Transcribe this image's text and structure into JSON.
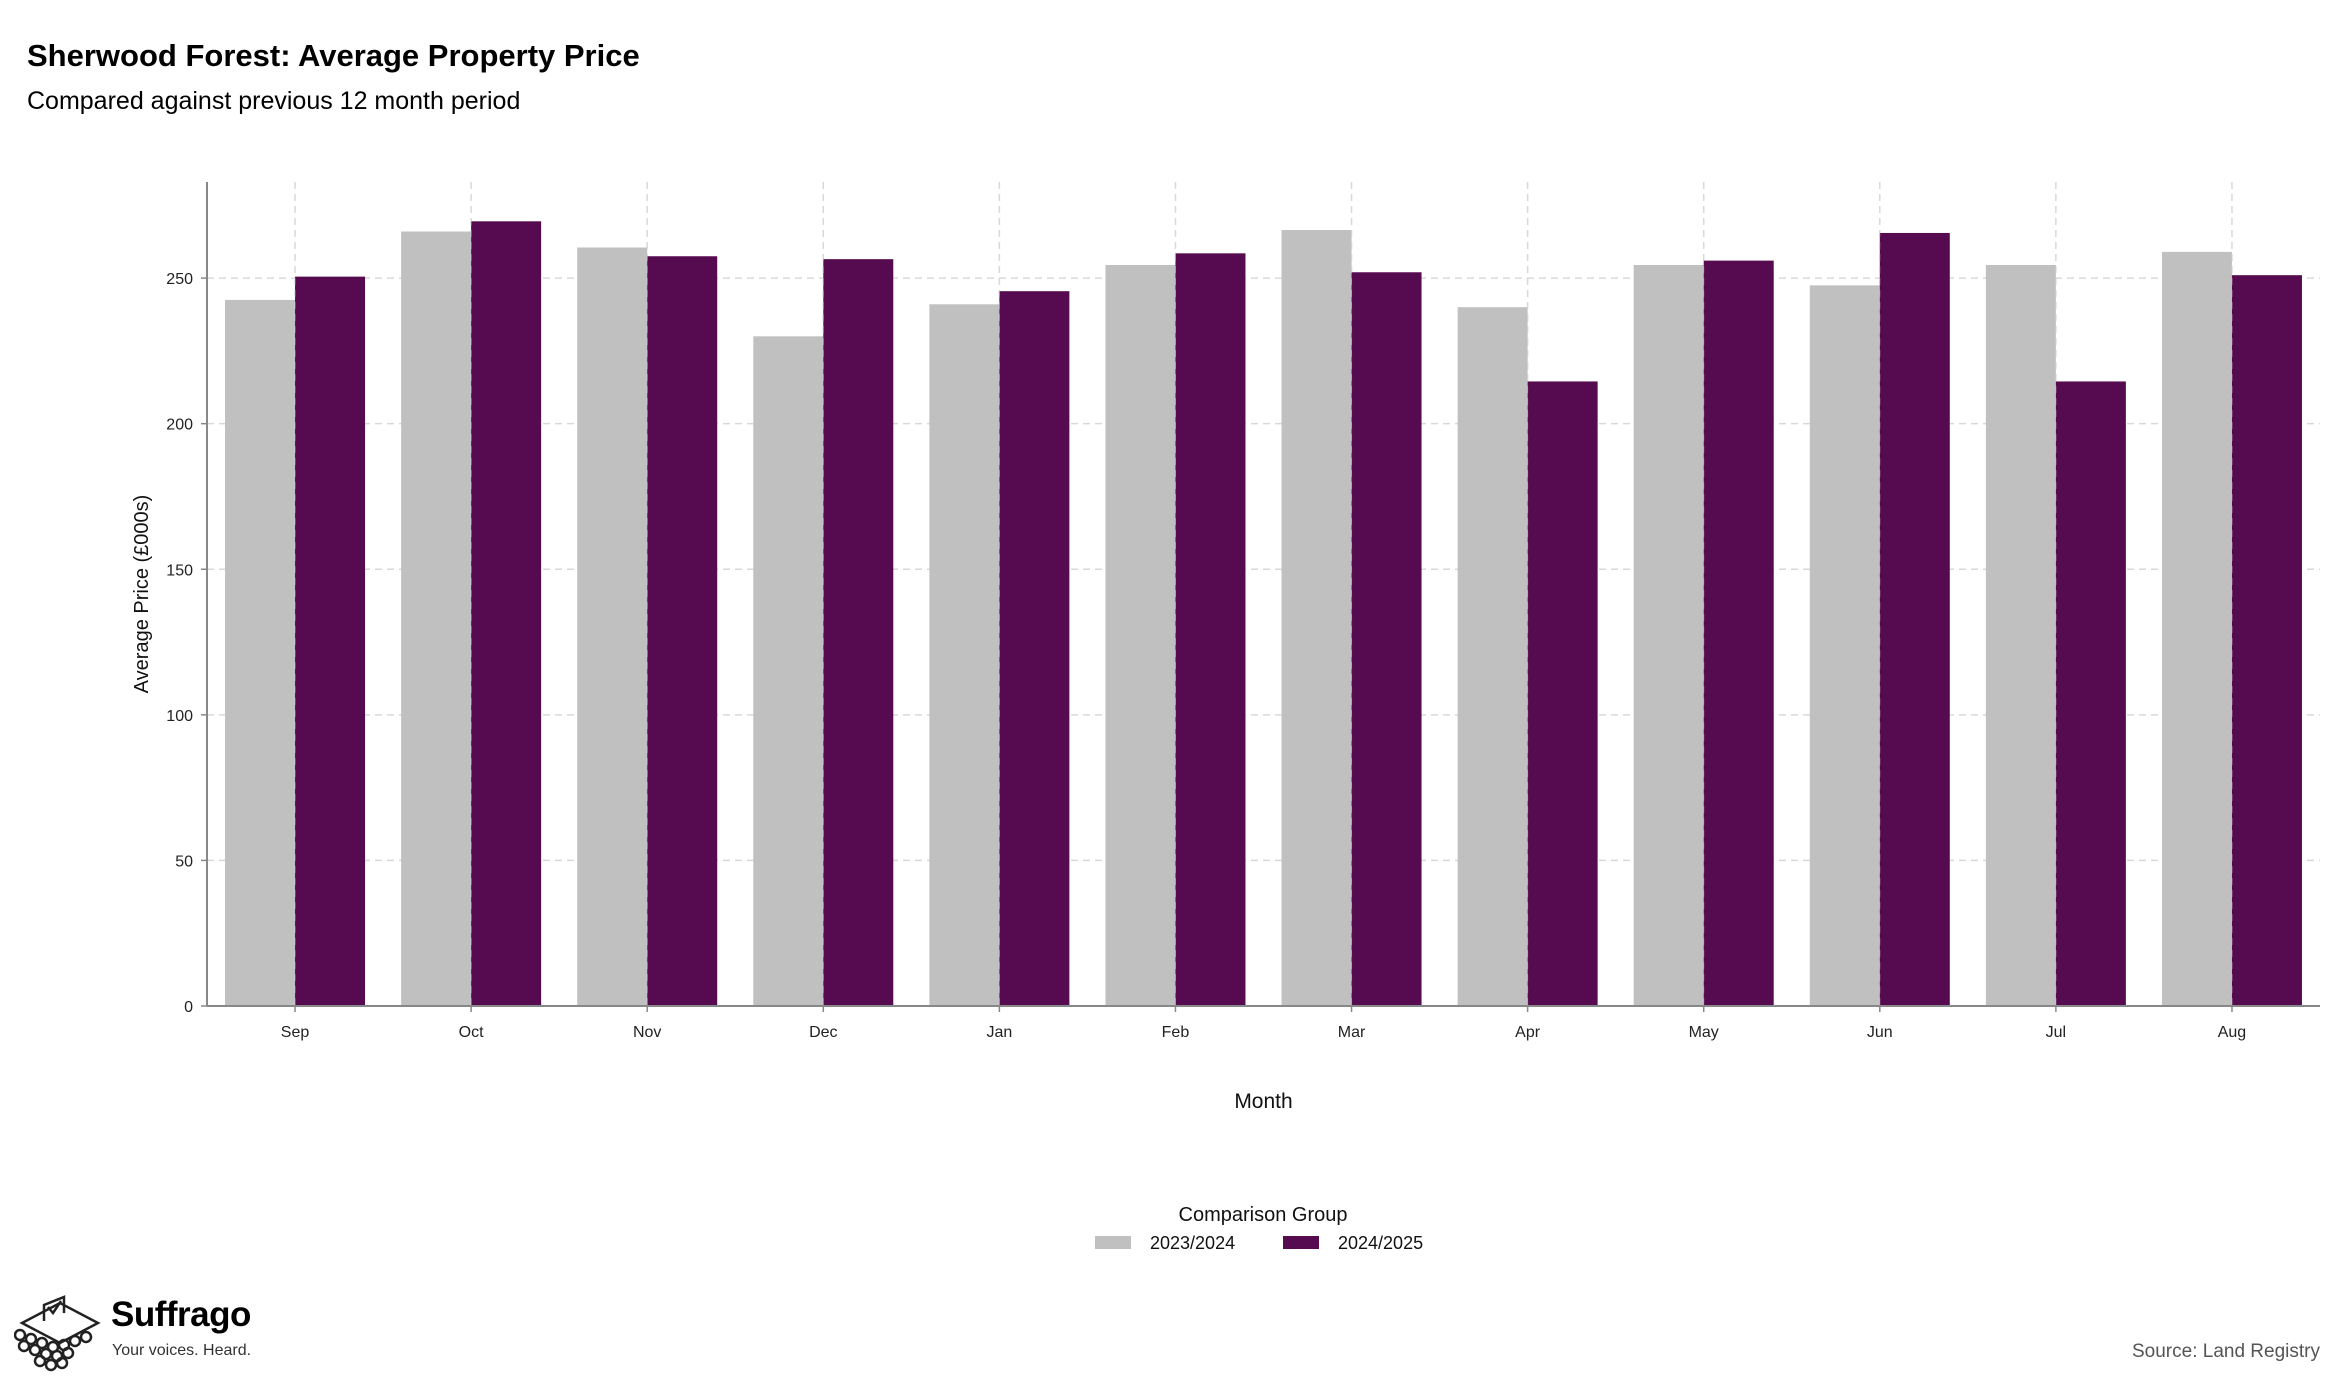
{
  "header": {
    "title": "Sherwood Forest: Average Property Price",
    "subtitle": "Compared against previous 12 month period"
  },
  "footer": {
    "source": "Source: Land Registry",
    "brand_name": "Suffrago",
    "brand_tagline": "Your voices. Heard."
  },
  "chart_data": {
    "type": "bar",
    "title": "Sherwood Forest: Average Property Price",
    "subtitle": "Compared against previous 12 month period",
    "xlabel": "Month",
    "ylabel": "Average Price (£000s)",
    "ylim": [
      0,
      283
    ],
    "yticks": [
      0,
      50,
      100,
      150,
      200,
      250
    ],
    "grid": true,
    "legend": {
      "title": "Comparison Group",
      "position": "bottom"
    },
    "categories": [
      "Sep",
      "Oct",
      "Nov",
      "Dec",
      "Jan",
      "Feb",
      "Mar",
      "Apr",
      "May",
      "Jun",
      "Jul",
      "Aug"
    ],
    "series": [
      {
        "name": "2023/2024",
        "color": "#c0c0c0",
        "values": [
          242.5,
          266,
          260.5,
          230,
          241,
          254.5,
          266.5,
          240,
          254.5,
          247.5,
          254.5,
          259
        ]
      },
      {
        "name": "2024/2025",
        "color": "#560b50",
        "values": [
          250.5,
          269.5,
          257.5,
          256.5,
          245.5,
          258.5,
          252,
          214.5,
          256,
          265.5,
          214.5,
          251
        ]
      }
    ]
  }
}
